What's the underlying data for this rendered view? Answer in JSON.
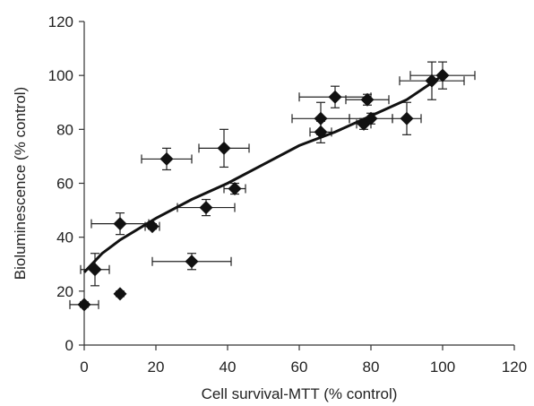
{
  "chart_data": {
    "type": "scatter",
    "title": "",
    "xlabel": "Cell survival-MTT (% control)",
    "ylabel": "Bioluminescence (% control)",
    "xlim": [
      0,
      120
    ],
    "ylim": [
      0,
      120
    ],
    "xticks": [
      "0",
      "20",
      "40",
      "60",
      "80",
      "100",
      "120"
    ],
    "yticks": [
      "0",
      "20",
      "40",
      "60",
      "80",
      "100",
      "120"
    ],
    "grid": false,
    "legend": "none",
    "marker": "diamond",
    "marker_color": "#111111",
    "points": [
      {
        "x": 0,
        "y": 15,
        "xerr": 4,
        "yerr": 1
      },
      {
        "x": 3,
        "y": 28,
        "xerr": 4,
        "yerr": 6
      },
      {
        "x": 10,
        "y": 19,
        "xerr": 0,
        "yerr": 1
      },
      {
        "x": 10,
        "y": 45,
        "xerr": 8,
        "yerr": 4
      },
      {
        "x": 19,
        "y": 44,
        "xerr": 2,
        "yerr": 1
      },
      {
        "x": 23,
        "y": 69,
        "xerr": 7,
        "yerr": 4
      },
      {
        "x": 30,
        "y": 31,
        "xerr": 11,
        "yerr": 3
      },
      {
        "x": 34,
        "y": 51,
        "xerr": 8,
        "yerr": 3
      },
      {
        "x": 39,
        "y": 73,
        "xerr": 7,
        "yerr": 7
      },
      {
        "x": 42,
        "y": 58,
        "xerr": 3,
        "yerr": 2
      },
      {
        "x": 66,
        "y": 79,
        "xerr": 3,
        "yerr": 4
      },
      {
        "x": 66,
        "y": 84,
        "xerr": 8,
        "yerr": 6
      },
      {
        "x": 70,
        "y": 92,
        "xerr": 10,
        "yerr": 4
      },
      {
        "x": 78,
        "y": 82,
        "xerr": 2,
        "yerr": 2
      },
      {
        "x": 79,
        "y": 91,
        "xerr": 6,
        "yerr": 2
      },
      {
        "x": 80,
        "y": 84,
        "xerr": 6,
        "yerr": 2
      },
      {
        "x": 90,
        "y": 84,
        "xerr": 4,
        "yerr": 6
      },
      {
        "x": 97,
        "y": 98,
        "xerr": 9,
        "yerr": 7
      },
      {
        "x": 100,
        "y": 100,
        "xerr": 9,
        "yerr": 5
      }
    ],
    "trendline": {
      "x": [
        0,
        5,
        10,
        20,
        30,
        40,
        50,
        60,
        70,
        80,
        90,
        100
      ],
      "y": [
        27,
        34,
        39,
        47,
        54,
        60,
        67,
        74,
        79,
        85,
        91,
        100
      ]
    }
  }
}
